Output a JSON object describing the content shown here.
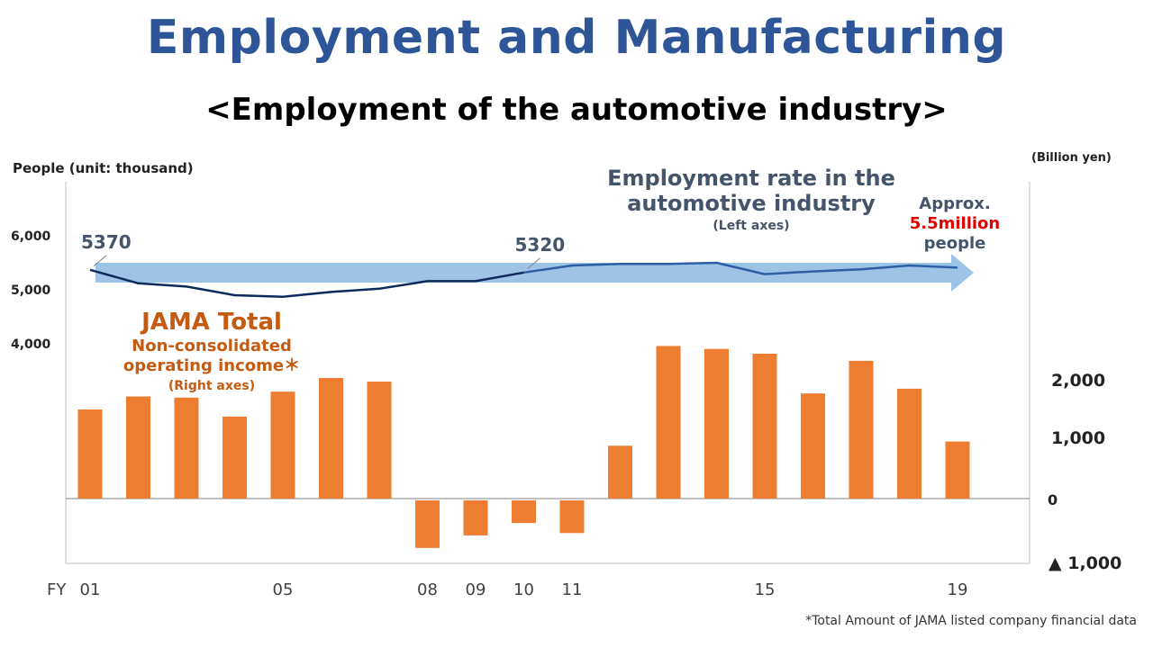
{
  "header": {
    "title": "Employment and Manufacturing",
    "subtitle": "<Employment of the automotive industry>"
  },
  "axes": {
    "left_unit": "People (unit: thousand)",
    "right_unit": "(Billion yen)",
    "x_prefix": "FY"
  },
  "annotations": {
    "employment_title": "Employment rate in the automotive industry",
    "employment_axis_note": "(Left axes)",
    "approx_line1": "Approx.",
    "approx_line2": "5.5million",
    "approx_line3": "people",
    "jama_title": "JAMA Total",
    "jama_line1": "Non-consolidated",
    "jama_line2": "operating income＊",
    "jama_axis_note": "(Right axes)",
    "footnote": "*Total Amount of JAMA listed company financial data"
  },
  "colors": {
    "title": "#2e5597",
    "bars": "#ed7d31",
    "line_dark": "#0e2a5a",
    "line_mid": "#2e5fa6",
    "arrow": "#9dc3e6",
    "jama_text": "#c55a11",
    "approx_highlight": "#e00000"
  },
  "chart_data": {
    "type": "bar+line",
    "categories": [
      "01",
      "02",
      "03",
      "04",
      "05",
      "06",
      "07",
      "08",
      "09",
      "10",
      "11",
      "12",
      "13",
      "14",
      "15",
      "16",
      "17",
      "18",
      "19"
    ],
    "x_tick_labels": [
      "01",
      "",
      "",
      "",
      "05",
      "",
      "",
      "08",
      "09",
      "10",
      "11",
      "",
      "",
      "",
      "15",
      "",
      "",
      "",
      "19"
    ],
    "series": [
      {
        "name": "JAMA Total Non-consolidated operating income",
        "type": "bar",
        "axis": "right",
        "values": [
          1500,
          1720,
          1700,
          1380,
          1800,
          2030,
          1970,
          -830,
          -620,
          -410,
          -580,
          890,
          2570,
          2520,
          2440,
          1770,
          2320,
          1850,
          960
        ]
      },
      {
        "name": "Employment rate in the automotive industry",
        "type": "line",
        "axis": "left",
        "values": [
          5370,
          5120,
          5060,
          4900,
          4870,
          4960,
          5020,
          5160,
          5160,
          5320,
          5450,
          5480,
          5480,
          5500,
          5290,
          5340,
          5380,
          5450,
          5410
        ]
      }
    ],
    "point_labels": [
      {
        "category": "01",
        "text": "5370"
      },
      {
        "category": "10",
        "text": "5320"
      }
    ],
    "left_axis": {
      "ticks": [
        4000,
        5000,
        6000
      ],
      "tick_labels": [
        "4,000",
        "5,000",
        "6,000"
      ]
    },
    "right_axis": {
      "ticks": [
        -1000,
        0,
        1000,
        2000
      ],
      "tick_labels": [
        "▲ 1,000",
        "0",
        "1,000",
        "2,000"
      ]
    },
    "legend": "none",
    "grid": false
  }
}
